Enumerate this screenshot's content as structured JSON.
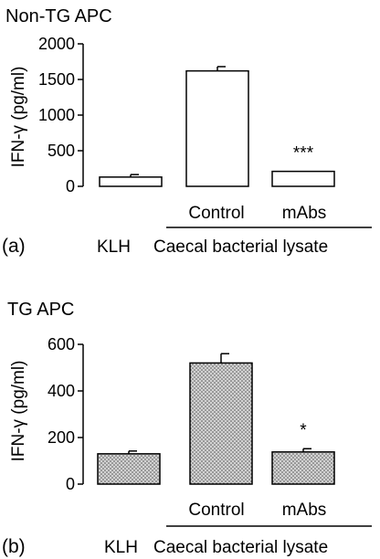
{
  "chart_data": [
    {
      "type": "bar",
      "title": "Non-TG APC",
      "panel_label": "(a)",
      "ylabel": "IFN-γ (pg/ml)",
      "ylim": [
        0,
        2000
      ],
      "yticks": [
        0,
        500,
        1000,
        1500,
        2000
      ],
      "categories": [
        "KLH",
        "Control",
        "mAbs"
      ],
      "values": [
        130,
        1620,
        210
      ],
      "errors": [
        35,
        60,
        0
      ],
      "significance": [
        "",
        "",
        "***"
      ],
      "bar_fill": "white",
      "group_label": "Caecal bacterial lysate"
    },
    {
      "type": "bar",
      "title": "TG APC",
      "panel_label": "(b)",
      "ylabel": "IFN-γ (pg/ml)",
      "ylim": [
        0,
        600
      ],
      "yticks": [
        0,
        200,
        400,
        600
      ],
      "categories": [
        "KLH",
        "Control",
        "mAbs"
      ],
      "values": [
        130,
        520,
        138
      ],
      "errors": [
        12,
        40,
        14
      ],
      "significance": [
        "",
        "",
        "*"
      ],
      "bar_fill": "stippled",
      "group_label": "Caecal bacterial lysate"
    }
  ]
}
